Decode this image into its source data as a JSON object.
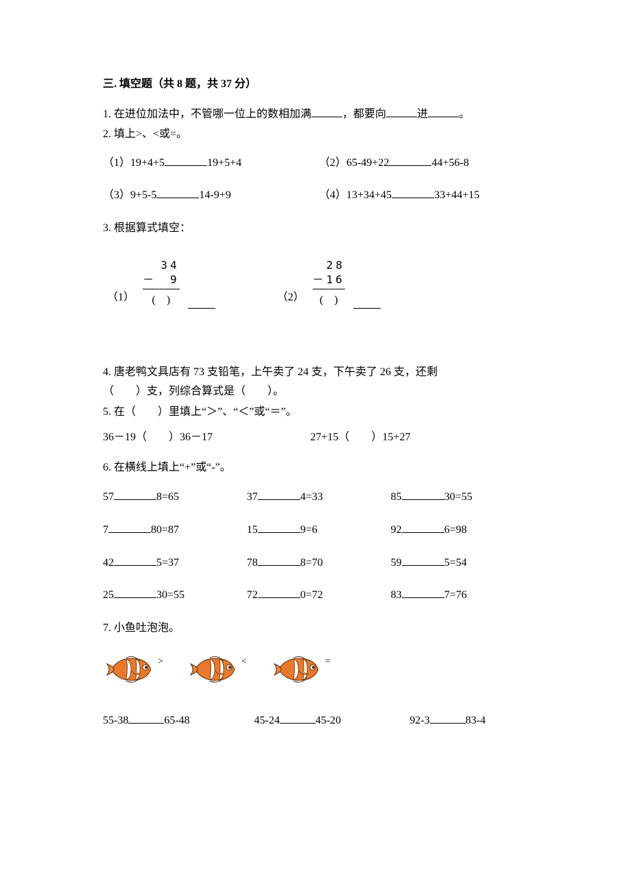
{
  "section_title": "三. 填空题（共 8 题，共 37 分）",
  "q1": "1. 在进位加法中，不管哪一位上的数相加满",
  "q1_mid": "，都要向",
  "q1_tail1": "进",
  "q1_tail2": "。",
  "q2_head": "2. 填上>、<或=。",
  "q2_1_l": "（1）19+4+5",
  "q2_1_r": "19+5+4",
  "q2_2_l": "（2）65-49+22",
  "q2_2_r": "44+56-8",
  "q2_3_l": "（3）9+5-5",
  "q2_3_r": "14-9+9",
  "q2_4_l": "（4）13+34+45",
  "q2_4_r": "33+44+15",
  "q3_head": "3. 根据算式填空：",
  "q3_1_lbl": "（1）",
  "q3_1_a": "34",
  "q3_1_b": "－　9",
  "q3_2_lbl": "（2）",
  "q3_2_a": "28",
  "q3_2_b": "－16",
  "paren": "(　)",
  "q4_a": "4. 唐老鸭文具店有 73 支铅笔，上午卖了 24 支，下午卖了 26 支，还剩",
  "q4_b": "（　　）支，列综合算式是（　　）。",
  "q5_head": "5. 在（　　）里填上“＞”、“＜”或“＝”。",
  "q5_1": "36－19（　　）36－17",
  "q5_2": "27+15（　　）15+27",
  "q6_head": "6. 在横线上填上“+”或“-”。",
  "q6": [
    [
      "57",
      "8=65",
      "37",
      "4=33",
      "85",
      "30=55"
    ],
    [
      "7",
      "80=87",
      "15",
      "9=6",
      "92",
      "6=98"
    ],
    [
      "42",
      "5=37",
      "78",
      "8=70",
      "59",
      "5=54"
    ],
    [
      "25",
      "30=55",
      "72",
      "0=72",
      "83",
      "7=76"
    ]
  ],
  "q7_head": "7. 小鱼吐泡泡。",
  "fish_syms": [
    ">",
    "<",
    "="
  ],
  "q7_c": [
    [
      "55-38",
      "65-48"
    ],
    [
      "45-24",
      "45-20"
    ],
    [
      "92-3",
      "83-4"
    ]
  ],
  "fish_colors": {
    "body": "#e8792c",
    "stripe": "#ffffff",
    "outline": "#5a2d12",
    "fin": "#e28a3e",
    "eye": "#ffffff"
  }
}
